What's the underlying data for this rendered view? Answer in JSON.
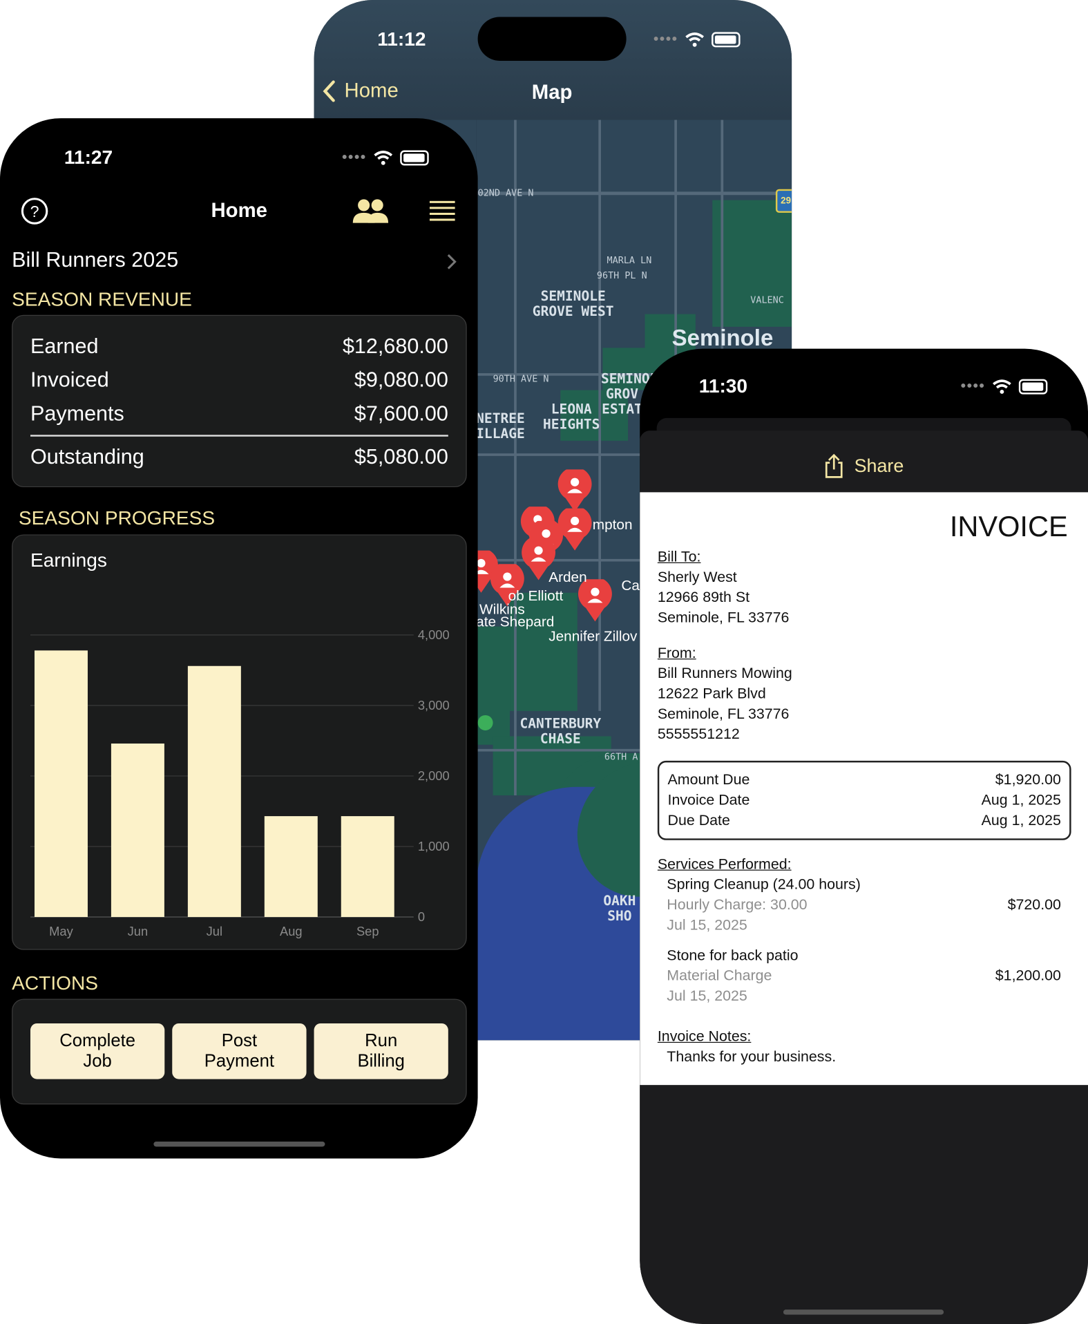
{
  "map_screen": {
    "time": "11:12",
    "back_label": "Home",
    "title": "Map",
    "labels": {
      "seminole_grove_west": "SEMINOLE GROVE WEST",
      "seminole": "Seminole",
      "leona_heights": "LEONA HEIGHTS",
      "seminole_grove_estates": "SEMINOL GROV ESTAT",
      "treetree_village": "NETREE ILLAGE",
      "canterbury_chase": "CANTERBURY CHASE",
      "oakhurst_shores": "OAKH SHO",
      "ave_102nd": "02ND AVE N",
      "ave_90th": "90TH AVE N",
      "marla_ln": "MARLA LN",
      "pl_96th": "96TH PL N",
      "valencia": "VALENC",
      "ave_66th": "66TH A",
      "route": "29"
    },
    "pin_names": [
      "mpton",
      "Arden",
      "ob Elliott",
      "Wilkins",
      "ate Shepard",
      "Jennifer Zillov",
      "Ca"
    ]
  },
  "home_screen": {
    "time": "11:27",
    "title": "Home",
    "season_name": "Bill Runners 2025",
    "revenue_header": "SEASON REVENUE",
    "revenue": [
      {
        "label": "Earned",
        "value": "$12,680.00"
      },
      {
        "label": "Invoiced",
        "value": "$9,080.00"
      },
      {
        "label": "Payments",
        "value": "$7,600.00"
      }
    ],
    "outstanding": {
      "label": "Outstanding",
      "value": "$5,080.00"
    },
    "progress_header": "SEASON PROGRESS",
    "actions_header": "ACTIONS",
    "actions": [
      {
        "label": "Complete Job"
      },
      {
        "label": "Post Payment"
      },
      {
        "label": "Run Billing"
      }
    ],
    "colors": {
      "accent": "#f4e6a4",
      "bar": "#fcf2c9",
      "button": "#faf0d2"
    }
  },
  "chart_data": {
    "type": "bar",
    "title": "Earnings",
    "categories": [
      "May",
      "Jun",
      "Jul",
      "Aug",
      "Sep"
    ],
    "values": [
      3780,
      2460,
      3560,
      1430,
      1430
    ],
    "ylim": [
      0,
      4000
    ],
    "yticks": [
      "0",
      "1,000",
      "2,000",
      "3,000",
      "4,000"
    ],
    "ytick_values": [
      0,
      1000,
      2000,
      3000,
      4000
    ],
    "grid": true,
    "y_axis_side": "right"
  },
  "invoice_screen": {
    "time": "11:30",
    "share_label": "Share",
    "heading": "INVOICE",
    "bill_to_label": "Bill To:",
    "bill_to": [
      "Sherly West",
      "12966 89th St",
      "Seminole,  FL  33776"
    ],
    "from_label": "From:",
    "from": [
      "Bill Runners Mowing",
      "12622 Park Blvd",
      "Seminole,  FL  33776",
      "5555551212"
    ],
    "summary": [
      {
        "label": "Amount Due",
        "value": "$1,920.00"
      },
      {
        "label": "Invoice Date",
        "value": "Aug 1, 2025"
      },
      {
        "label": "Due Date",
        "value": "Aug 1, 2025"
      }
    ],
    "services_label": "Services Performed:",
    "services": [
      {
        "title": "Spring Cleanup (24.00 hours)",
        "detail": "Hourly Charge:  30.00",
        "date": "Jul 15, 2025",
        "amount": "$720.00"
      },
      {
        "title": "Stone for back patio",
        "detail": "Material Charge",
        "date": "Jul 15, 2025",
        "amount": "$1,200.00"
      }
    ],
    "notes_label": "Invoice Notes:",
    "notes": "Thanks for your business."
  }
}
